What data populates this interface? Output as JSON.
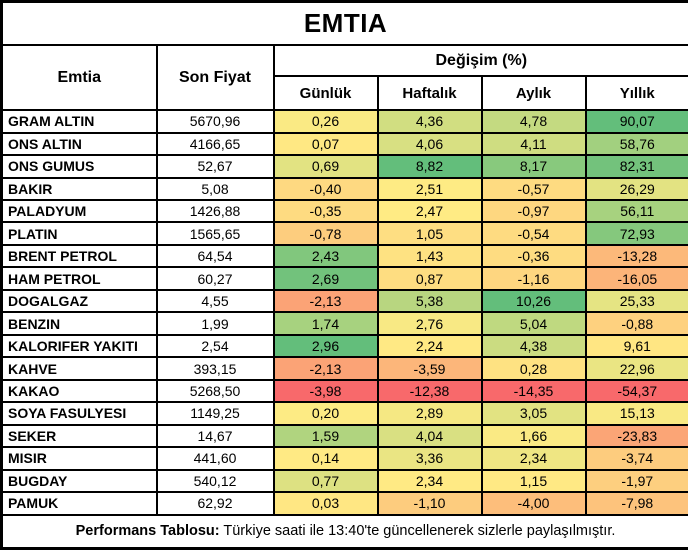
{
  "title": "EMTIA",
  "headers": {
    "commodity": "Emtia",
    "last_price": "Son Fiyat",
    "change_group": "Değişim (%)",
    "periods": [
      "Günlük",
      "Haftalık",
      "Aylık",
      "Yıllık"
    ]
  },
  "colors": {
    "scale_min_red": "#F8696B",
    "scale_mid_yellow": "#FFEB84",
    "scale_max_green": "#63BE7B",
    "border": "#000000",
    "text": "#000000",
    "background": "#FFFFFF"
  },
  "rows": [
    {
      "name": "GRAM ALTIN",
      "price": "5670,96",
      "changes": [
        {
          "v": "0,26",
          "c": "#FAEA84"
        },
        {
          "v": "4,36",
          "c": "#D1DE81"
        },
        {
          "v": "4,78",
          "c": "#C4DA81"
        },
        {
          "v": "90,07",
          "c": "#63BE7B"
        }
      ]
    },
    {
      "name": "ONS ALTIN",
      "price": "4166,65",
      "changes": [
        {
          "v": "0,07",
          "c": "#FFE883"
        },
        {
          "v": "4,06",
          "c": "#D8E082"
        },
        {
          "v": "4,11",
          "c": "#CFDD81"
        },
        {
          "v": "58,76",
          "c": "#A2D07F"
        }
      ]
    },
    {
      "name": "ONS GUMUS",
      "price": "52,67",
      "changes": [
        {
          "v": "0,69",
          "c": "#E2E382"
        },
        {
          "v": "8,82",
          "c": "#63BE7B"
        },
        {
          "v": "8,17",
          "c": "#88C97D"
        },
        {
          "v": "82,31",
          "c": "#73C27C"
        }
      ]
    },
    {
      "name": "BAKIR",
      "price": "5,08",
      "changes": [
        {
          "v": "-0,40",
          "c": "#FED981"
        },
        {
          "v": "2,51",
          "c": "#FEEB84"
        },
        {
          "v": "-0,57",
          "c": "#FEDB81"
        },
        {
          "v": "26,29",
          "c": "#E3E382"
        }
      ]
    },
    {
      "name": "PALADYUM",
      "price": "1426,88",
      "changes": [
        {
          "v": "-0,35",
          "c": "#FEDB81"
        },
        {
          "v": "2,47",
          "c": "#FFEB84"
        },
        {
          "v": "-0,97",
          "c": "#FED780"
        },
        {
          "v": "56,11",
          "c": "#A7D27F"
        }
      ]
    },
    {
      "name": "PLATIN",
      "price": "1565,65",
      "changes": [
        {
          "v": "-0,78",
          "c": "#FDCD7E"
        },
        {
          "v": "1,05",
          "c": "#FEDE82"
        },
        {
          "v": "-0,54",
          "c": "#FEDB81"
        },
        {
          "v": "72,93",
          "c": "#85C87D"
        }
      ]
    },
    {
      "name": "BRENT PETROL",
      "price": "64,54",
      "changes": [
        {
          "v": "2,43",
          "c": "#81C77D"
        },
        {
          "v": "1,43",
          "c": "#FEE282"
        },
        {
          "v": "-0,36",
          "c": "#FEDC81"
        },
        {
          "v": "-13,28",
          "c": "#FCB97A"
        }
      ]
    },
    {
      "name": "HAM PETROL",
      "price": "60,27",
      "changes": [
        {
          "v": "2,69",
          "c": "#72C27C"
        },
        {
          "v": "0,87",
          "c": "#FEDD81"
        },
        {
          "v": "-1,16",
          "c": "#FED680"
        },
        {
          "v": "-16,05",
          "c": "#FCB479"
        }
      ]
    },
    {
      "name": "DOGALGAZ",
      "price": "4,55",
      "changes": [
        {
          "v": "-2,13",
          "c": "#FBA376"
        },
        {
          "v": "5,38",
          "c": "#B8D680"
        },
        {
          "v": "10,26",
          "c": "#63BE7B"
        },
        {
          "v": "25,33",
          "c": "#E5E483"
        }
      ]
    },
    {
      "name": "BENZIN",
      "price": "1,99",
      "changes": [
        {
          "v": "1,74",
          "c": "#A7D27F"
        },
        {
          "v": "2,76",
          "c": "#F8E984"
        },
        {
          "v": "5,04",
          "c": "#BFD980"
        },
        {
          "v": "-0,88",
          "c": "#FED17F"
        }
      ]
    },
    {
      "name": "KALORIFER YAKITI",
      "price": "2,54",
      "changes": [
        {
          "v": "2,96",
          "c": "#63BE7B"
        },
        {
          "v": "2,24",
          "c": "#FFE984"
        },
        {
          "v": "4,38",
          "c": "#CBDC81"
        },
        {
          "v": "9,61",
          "c": "#FFE683"
        }
      ]
    },
    {
      "name": "KAHVE",
      "price": "393,15",
      "changes": [
        {
          "v": "-2,13",
          "c": "#FBA376"
        },
        {
          "v": "-3,59",
          "c": "#FCB67A"
        },
        {
          "v": "0,28",
          "c": "#FEE282"
        },
        {
          "v": "22,96",
          "c": "#EAE583"
        }
      ]
    },
    {
      "name": "KAKAO",
      "price": "5268,50",
      "changes": [
        {
          "v": "-3,98",
          "c": "#F8696B"
        },
        {
          "v": "-12,38",
          "c": "#F8696B"
        },
        {
          "v": "-14,35",
          "c": "#F8696B"
        },
        {
          "v": "-54,37",
          "c": "#F8696B"
        }
      ]
    },
    {
      "name": "SOYA FASULYESI",
      "price": "1149,25",
      "changes": [
        {
          "v": "0,20",
          "c": "#FDEB84"
        },
        {
          "v": "2,89",
          "c": "#F5E883"
        },
        {
          "v": "3,05",
          "c": "#E2E382"
        },
        {
          "v": "15,13",
          "c": "#F9E984"
        }
      ]
    },
    {
      "name": "SEKER",
      "price": "14,67",
      "changes": [
        {
          "v": "1,59",
          "c": "#B0D47F"
        },
        {
          "v": "4,04",
          "c": "#D9E082"
        },
        {
          "v": "1,66",
          "c": "#FAEA84"
        },
        {
          "v": "-23,83",
          "c": "#FBA576"
        }
      ]
    },
    {
      "name": "MISIR",
      "price": "441,60",
      "changes": [
        {
          "v": "0,14",
          "c": "#FFEA84"
        },
        {
          "v": "3,36",
          "c": "#EAE583"
        },
        {
          "v": "2,34",
          "c": "#EFE683"
        },
        {
          "v": "-3,74",
          "c": "#FDCC7E"
        }
      ]
    },
    {
      "name": "BUGDAY",
      "price": "540,12",
      "changes": [
        {
          "v": "0,77",
          "c": "#DDE182"
        },
        {
          "v": "2,34",
          "c": "#FFEA84"
        },
        {
          "v": "1,15",
          "c": "#FFE984"
        },
        {
          "v": "-1,97",
          "c": "#FDCF7F"
        }
      ]
    },
    {
      "name": "PAMUK",
      "price": "62,92",
      "changes": [
        {
          "v": "0,03",
          "c": "#FFE783"
        },
        {
          "v": "-1,10",
          "c": "#FDCC7E"
        },
        {
          "v": "-4,00",
          "c": "#FDBE7B"
        },
        {
          "v": "-7,98",
          "c": "#FDC37C"
        }
      ]
    }
  ],
  "footer": {
    "bold": "Performans Tablosu:",
    "text": " Türkiye saati ile 13:40'te güncellenerek sizlerle paylaşılmıştır."
  },
  "chart_data": {
    "type": "table",
    "title": "EMTIA",
    "columns": [
      "Emtia",
      "Son Fiyat",
      "Değişim (%) Günlük",
      "Değişim (%) Haftalık",
      "Değişim (%) Aylık",
      "Değişim (%) Yıllık"
    ],
    "rows": [
      [
        "GRAM ALTIN",
        5670.96,
        0.26,
        4.36,
        4.78,
        90.07
      ],
      [
        "ONS ALTIN",
        4166.65,
        0.07,
        4.06,
        4.11,
        58.76
      ],
      [
        "ONS GUMUS",
        52.67,
        0.69,
        8.82,
        8.17,
        82.31
      ],
      [
        "BAKIR",
        5.08,
        -0.4,
        2.51,
        -0.57,
        26.29
      ],
      [
        "PALADYUM",
        1426.88,
        -0.35,
        2.47,
        -0.97,
        56.11
      ],
      [
        "PLATIN",
        1565.65,
        -0.78,
        1.05,
        -0.54,
        72.93
      ],
      [
        "BRENT PETROL",
        64.54,
        2.43,
        1.43,
        -0.36,
        -13.28
      ],
      [
        "HAM PETROL",
        60.27,
        2.69,
        0.87,
        -1.16,
        -16.05
      ],
      [
        "DOGALGAZ",
        4.55,
        -2.13,
        5.38,
        10.26,
        25.33
      ],
      [
        "BENZIN",
        1.99,
        1.74,
        2.76,
        5.04,
        -0.88
      ],
      [
        "KALORIFER YAKITI",
        2.54,
        2.96,
        2.24,
        4.38,
        9.61
      ],
      [
        "KAHVE",
        393.15,
        -2.13,
        -3.59,
        0.28,
        22.96
      ],
      [
        "KAKAO",
        5268.5,
        -3.98,
        -12.38,
        -14.35,
        -54.37
      ],
      [
        "SOYA FASULYESI",
        1149.25,
        0.2,
        2.89,
        3.05,
        15.13
      ],
      [
        "SEKER",
        14.67,
        1.59,
        4.04,
        1.66,
        -23.83
      ],
      [
        "MISIR",
        441.6,
        0.14,
        3.36,
        2.34,
        -3.74
      ],
      [
        "BUGDAY",
        540.12,
        0.77,
        2.34,
        1.15,
        -1.97
      ],
      [
        "PAMUK",
        62.92,
        0.03,
        -1.1,
        -4.0,
        -7.98
      ]
    ],
    "notes": "Cell backgrounds use a per-column red-yellow-green conditional color scale (min #F8696B, median #FFEB84, max #63BE7B). Footer: Performans Tablosu: Türkiye saati ile 13:40'te güncellenerek sizlerle paylaşılmıştır."
  }
}
